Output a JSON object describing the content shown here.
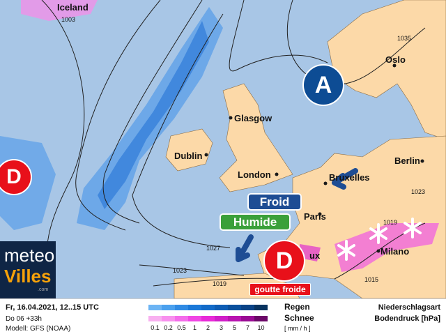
{
  "cities": {
    "iceland": "Iceland",
    "oslo": "Oslo",
    "glasgow": "Glasgow",
    "dublin": "Dublin",
    "london": "London",
    "bruxelles": "Bruxelles",
    "berlin": "Berlin",
    "paris": "Paris",
    "milano": "Milano",
    "bordeaux_partial": "ux"
  },
  "isobars": {
    "i1003": "1003",
    "i1035": "1035",
    "i1027": "1027",
    "i1023a": "1023",
    "i1023b": "1023",
    "i1019a": "1019",
    "i1019b": "1019",
    "i1015": "1015"
  },
  "pressure_centers": {
    "low_west": "D",
    "low_france": "D",
    "high_scandinavia": "A"
  },
  "annotations": {
    "froid": "Froid",
    "humide": "Humide",
    "goutte_froide": "goutte froide"
  },
  "logo": {
    "line1": "meteo",
    "line2": "Villes",
    "suffix": ".com"
  },
  "legend": {
    "date": "Fr, 16.04.2021, 12..15 UTC",
    "run": "Do 06 +33h",
    "model": "Modell: GFS (NOAA)",
    "rain": "Regen",
    "snow": "Schnee",
    "unit": "[ mm / h ]",
    "ticks": [
      "0.1",
      "0.2",
      "0.5",
      "1",
      "2",
      "3",
      "5",
      "7",
      "10"
    ],
    "type_label": "Niederschlagsart",
    "pressure_label": "Bodendruck [hPa]",
    "rain_colors": [
      "#6cb4f4",
      "#4aa0ee",
      "#2f8ae4",
      "#1a78d8",
      "#126ac8",
      "#0d5cb4",
      "#0a4f9c",
      "#0a4286",
      "#08335f"
    ],
    "snow_colors": [
      "#f8b0f0",
      "#f890ee",
      "#f46cea",
      "#f046e4",
      "#e82ad8",
      "#d01ec8",
      "#b814b0",
      "#9a0c94",
      "#6c0868"
    ]
  },
  "colors": {
    "sea": "#a8c6e6",
    "land": "#fcd9a8",
    "low": "#e8101a",
    "high": "#0d4c94",
    "froid": "#1e4d94",
    "humide": "#3aa03a"
  }
}
